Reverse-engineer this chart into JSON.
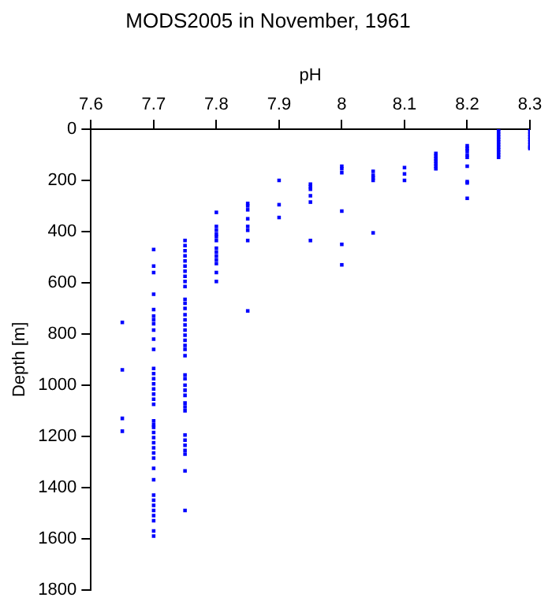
{
  "chart_data": {
    "type": "scatter",
    "title": "MODS2005 in November, 1961",
    "xlabel": "pH",
    "ylabel": "Depth [m]",
    "xlim": [
      7.6,
      8.3
    ],
    "xticks": [
      7.6,
      7.7,
      7.8,
      7.9,
      8,
      8.1,
      8.2,
      8.3
    ],
    "ylim": [
      1800,
      0
    ],
    "yticks": [
      0,
      200,
      400,
      600,
      800,
      1000,
      1200,
      1400,
      1600,
      1800
    ],
    "marker": "square",
    "series": [
      {
        "color": "#0000ff",
        "x": [
          7.65,
          7.65,
          7.65,
          7.65,
          7.7,
          7.7,
          7.7,
          7.7,
          7.7,
          7.7,
          7.7,
          7.7,
          7.7,
          7.7,
          7.7,
          7.7,
          7.7,
          7.7,
          7.7,
          7.7,
          7.7,
          7.7,
          7.7,
          7.7,
          7.7,
          7.7,
          7.7,
          7.7,
          7.7,
          7.7,
          7.7,
          7.7,
          7.7,
          7.7,
          7.7,
          7.7,
          7.7,
          7.7,
          7.7,
          7.7,
          7.7,
          7.7,
          7.75,
          7.75,
          7.75,
          7.75,
          7.75,
          7.75,
          7.75,
          7.75,
          7.75,
          7.75,
          7.75,
          7.75,
          7.75,
          7.75,
          7.75,
          7.75,
          7.75,
          7.75,
          7.75,
          7.75,
          7.75,
          7.75,
          7.75,
          7.75,
          7.75,
          7.75,
          7.75,
          7.75,
          7.75,
          7.75,
          7.75,
          7.75,
          7.75,
          7.75,
          7.75,
          7.75,
          7.75,
          7.8,
          7.8,
          7.8,
          7.8,
          7.8,
          7.8,
          7.8,
          7.8,
          7.8,
          7.8,
          7.8,
          7.8,
          7.8,
          7.85,
          7.85,
          7.85,
          7.85,
          7.85,
          7.85,
          7.85,
          7.85,
          7.9,
          7.9,
          7.9,
          7.95,
          7.95,
          7.95,
          7.95,
          7.95,
          7.95,
          8,
          8,
          8,
          8,
          8,
          8,
          8.05,
          8.05,
          8.05,
          8.05,
          8.05,
          8.1,
          8.1,
          8.1,
          8.15,
          8.15,
          8.15,
          8.15,
          8.15,
          8.15,
          8.15,
          8.2,
          8.2,
          8.2,
          8.2,
          8.2,
          8.2,
          8.2,
          8.2,
          8.2,
          8.25,
          8.25,
          8.25,
          8.25,
          8.25,
          8.25,
          8.25,
          8.25,
          8.25,
          8.25,
          8.25,
          8.25,
          8.3,
          8.3,
          8.3,
          8.3,
          8.3,
          8.3,
          8.3,
          8.3,
          8.3
        ],
        "values": [
          755,
          940,
          1130,
          1180,
          470,
          535,
          560,
          645,
          705,
          730,
          745,
          760,
          785,
          820,
          860,
          935,
          955,
          975,
          995,
          1015,
          1035,
          1055,
          1075,
          1140,
          1155,
          1165,
          1185,
          1205,
          1225,
          1245,
          1265,
          1285,
          1325,
          1370,
          1430,
          1450,
          1470,
          1490,
          1510,
          1530,
          1570,
          1590,
          435,
          455,
          475,
          495,
          515,
          535,
          555,
          575,
          595,
          615,
          665,
          680,
          700,
          725,
          745,
          765,
          785,
          805,
          825,
          845,
          860,
          885,
          960,
          975,
          1000,
          1020,
          1040,
          1070,
          1085,
          1100,
          1195,
          1215,
          1235,
          1255,
          1270,
          1335,
          1490,
          325,
          380,
          395,
          410,
          420,
          435,
          465,
          480,
          495,
          510,
          525,
          560,
          595,
          290,
          300,
          315,
          350,
          380,
          395,
          435,
          710,
          200,
          295,
          345,
          215,
          225,
          235,
          260,
          285,
          435,
          145,
          155,
          170,
          320,
          450,
          530,
          165,
          180,
          190,
          200,
          405,
          150,
          175,
          200,
          95,
          105,
          115,
          125,
          135,
          145,
          155,
          65,
          75,
          85,
          100,
          110,
          145,
          205,
          210,
          270,
          0,
          10,
          20,
          30,
          40,
          50,
          60,
          70,
          80,
          90,
          100,
          110,
          0,
          10,
          20,
          30,
          40,
          50,
          60,
          70,
          75
        ]
      }
    ]
  }
}
